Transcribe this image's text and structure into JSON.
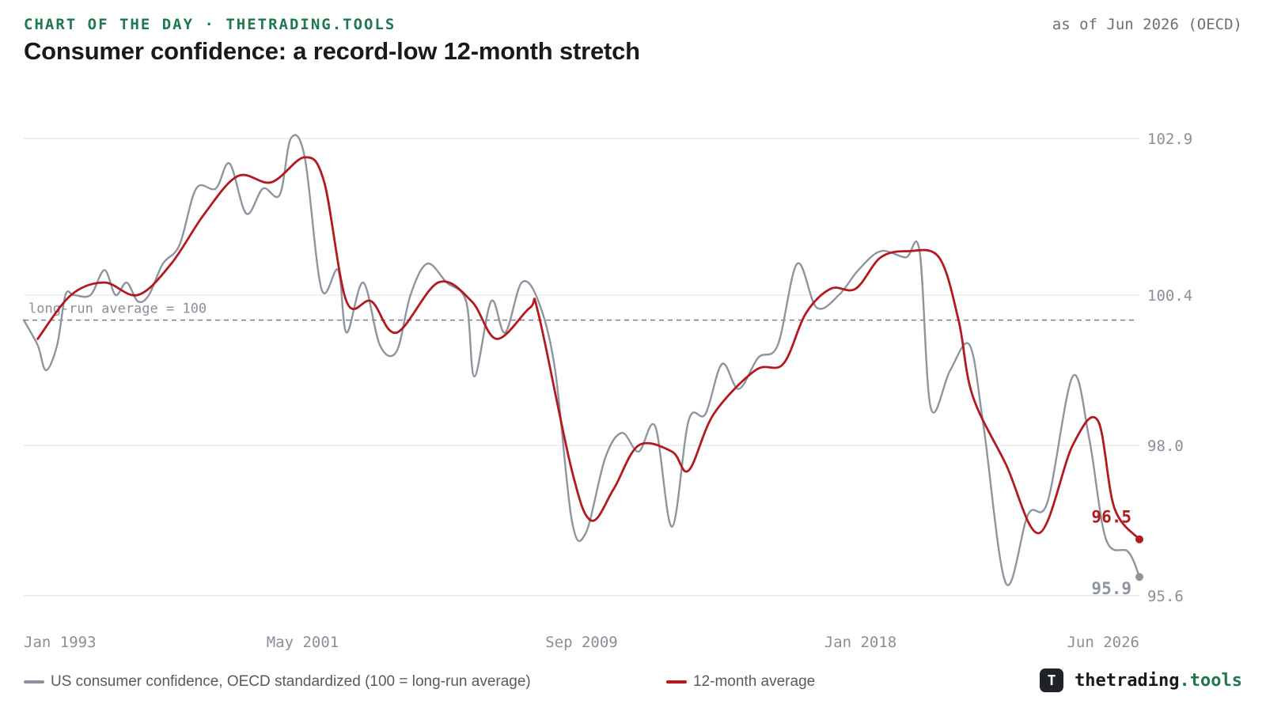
{
  "header": {
    "kicker": "CHART OF THE DAY · THETRADING.TOOLS",
    "as_of": "as of Jun 2026 (OECD)",
    "title": "Consumer confidence: a record-low 12-month stretch"
  },
  "brand": {
    "icon": "T",
    "name_part1": "thetrading",
    "name_part2": ".tools"
  },
  "colors": {
    "raw": "#8e959f",
    "avg": "#b3191e",
    "grid": "#e5e7eb",
    "reference": "#7a7f86",
    "accent": "#1d7a4e"
  },
  "chart_data": {
    "type": "line",
    "title": "Consumer confidence: a record-low 12-month stretch",
    "x_range": [
      "1993-01",
      "2026-06"
    ],
    "ylim": [
      95.6,
      102.9
    ],
    "y_ticks": [
      "102.9",
      "100.4",
      "98.0",
      "95.6"
    ],
    "x_ticks": [
      "Jan 1993",
      "May 2001",
      "Sep 2009",
      "Jan 2018",
      "Jun 2026"
    ],
    "grid": true,
    "y_axis_side": "right",
    "legend_position": "bottom",
    "reference_line": {
      "value": 100,
      "label": "long-run average = 100"
    },
    "series": [
      {
        "name": "US consumer confidence, OECD standardized (100 = long-run average)",
        "color": "#8e959f",
        "end_label": "95.9",
        "points": [
          [
            "1993-01",
            100.0
          ],
          [
            "1993-06",
            99.6
          ],
          [
            "1993-09",
            99.2
          ],
          [
            "1994-01",
            99.6
          ],
          [
            "1994-04",
            100.4
          ],
          [
            "1994-07",
            100.4
          ],
          [
            "1995-01",
            100.4
          ],
          [
            "1995-06",
            100.8
          ],
          [
            "1995-10",
            100.4
          ],
          [
            "1996-02",
            100.6
          ],
          [
            "1996-06",
            100.3
          ],
          [
            "1996-10",
            100.4
          ],
          [
            "1997-03",
            100.9
          ],
          [
            "1997-09",
            101.2
          ],
          [
            "1998-03",
            102.1
          ],
          [
            "1998-10",
            102.1
          ],
          [
            "1999-03",
            102.5
          ],
          [
            "1999-09",
            101.7
          ],
          [
            "2000-03",
            102.1
          ],
          [
            "2000-09",
            102.0
          ],
          [
            "2001-01",
            102.9
          ],
          [
            "2001-06",
            102.6
          ],
          [
            "2001-12",
            100.5
          ],
          [
            "2002-06",
            100.8
          ],
          [
            "2002-09",
            99.8
          ],
          [
            "2003-03",
            100.6
          ],
          [
            "2003-09",
            99.6
          ],
          [
            "2004-03",
            99.5
          ],
          [
            "2004-08",
            100.4
          ],
          [
            "2005-02",
            100.9
          ],
          [
            "2005-09",
            100.6
          ],
          [
            "2006-04",
            100.3
          ],
          [
            "2006-07",
            99.1
          ],
          [
            "2007-01",
            100.3
          ],
          [
            "2007-06",
            99.8
          ],
          [
            "2007-12",
            100.6
          ],
          [
            "2008-06",
            100.3
          ],
          [
            "2008-12",
            99.2
          ],
          [
            "2009-06",
            96.8
          ],
          [
            "2009-11",
            96.6
          ],
          [
            "2010-06",
            97.8
          ],
          [
            "2010-12",
            98.2
          ],
          [
            "2011-06",
            97.9
          ],
          [
            "2011-12",
            98.3
          ],
          [
            "2012-06",
            96.7
          ],
          [
            "2012-12",
            98.4
          ],
          [
            "2013-06",
            98.5
          ],
          [
            "2013-12",
            99.3
          ],
          [
            "2014-06",
            98.9
          ],
          [
            "2015-01",
            99.4
          ],
          [
            "2015-08",
            99.6
          ],
          [
            "2016-03",
            100.9
          ],
          [
            "2016-10",
            100.2
          ],
          [
            "2017-06",
            100.4
          ],
          [
            "2018-01",
            100.8
          ],
          [
            "2018-09",
            101.1
          ],
          [
            "2019-06",
            101.0
          ],
          [
            "2019-11",
            101.1
          ],
          [
            "2020-03",
            98.6
          ],
          [
            "2020-10",
            99.2
          ],
          [
            "2021-05",
            99.6
          ],
          [
            "2021-10",
            98.3
          ],
          [
            "2022-06",
            95.8
          ],
          [
            "2023-02",
            96.9
          ],
          [
            "2023-09",
            97.1
          ],
          [
            "2024-06",
            99.1
          ],
          [
            "2024-12",
            98.1
          ],
          [
            "2025-06",
            96.5
          ],
          [
            "2026-02",
            96.3
          ],
          [
            "2026-06",
            95.9
          ]
        ]
      },
      {
        "name": "12-month average",
        "color": "#b3191e",
        "end_label": "96.5",
        "points": [
          [
            "1993-06",
            99.7
          ],
          [
            "1994-06",
            100.4
          ],
          [
            "1995-06",
            100.6
          ],
          [
            "1996-06",
            100.4
          ],
          [
            "1997-06",
            100.9
          ],
          [
            "1998-06",
            101.7
          ],
          [
            "1999-06",
            102.3
          ],
          [
            "2000-06",
            102.2
          ],
          [
            "2001-06",
            102.6
          ],
          [
            "2002-01",
            102.2
          ],
          [
            "2002-09",
            100.3
          ],
          [
            "2003-06",
            100.3
          ],
          [
            "2004-03",
            99.8
          ],
          [
            "2005-06",
            100.6
          ],
          [
            "2006-06",
            100.3
          ],
          [
            "2007-03",
            99.7
          ],
          [
            "2008-03",
            100.2
          ],
          [
            "2008-06",
            100.1
          ],
          [
            "2009-06",
            97.6
          ],
          [
            "2010-01",
            96.8
          ],
          [
            "2010-09",
            97.3
          ],
          [
            "2011-06",
            98.0
          ],
          [
            "2012-06",
            97.9
          ],
          [
            "2012-12",
            97.6
          ],
          [
            "2013-09",
            98.5
          ],
          [
            "2014-12",
            99.2
          ],
          [
            "2015-10",
            99.3
          ],
          [
            "2016-06",
            100.1
          ],
          [
            "2017-03",
            100.5
          ],
          [
            "2017-12",
            100.5
          ],
          [
            "2018-09",
            101.0
          ],
          [
            "2019-07",
            101.1
          ],
          [
            "2020-06",
            101.0
          ],
          [
            "2021-01",
            100.0
          ],
          [
            "2021-06",
            98.8
          ],
          [
            "2022-06",
            97.7
          ],
          [
            "2023-06",
            96.6
          ],
          [
            "2024-06",
            98.0
          ],
          [
            "2025-03",
            98.4
          ],
          [
            "2025-09",
            97.0
          ],
          [
            "2026-06",
            96.5
          ]
        ]
      }
    ]
  }
}
